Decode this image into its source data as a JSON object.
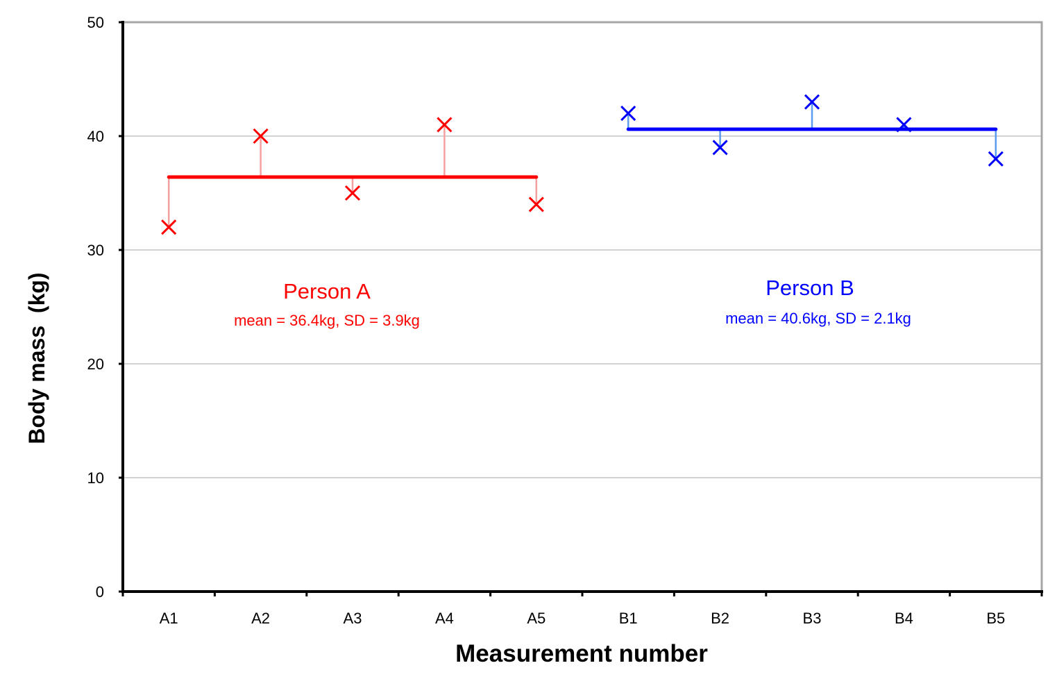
{
  "chart_data": {
    "type": "scatter",
    "title": "",
    "xlabel": "Measurement number",
    "ylabel": "Body mass  (kg)",
    "ylim": [
      0,
      50
    ],
    "yticks": [
      0,
      10,
      20,
      30,
      40,
      50
    ],
    "categories": [
      "A1",
      "A2",
      "A3",
      "A4",
      "A5",
      "B1",
      "B2",
      "B3",
      "B4",
      "B5"
    ],
    "grid": true,
    "series": [
      {
        "name": "Person A",
        "annotation": "mean = 36.4kg, SD = 3.9kg",
        "categories": [
          "A1",
          "A2",
          "A3",
          "A4",
          "A5"
        ],
        "values": [
          32,
          40,
          35,
          41,
          34
        ],
        "mean": 36.4,
        "color": "#ff0000",
        "residual_color": "#f4a0a0"
      },
      {
        "name": "Person B",
        "annotation": "mean = 40.6kg, SD = 2.1kg",
        "categories": [
          "B1",
          "B2",
          "B3",
          "B4",
          "B5"
        ],
        "values": [
          42,
          39,
          43,
          41,
          38
        ],
        "mean": 40.6,
        "color": "#0000ff",
        "residual_color": "#5b9bf0"
      }
    ]
  }
}
